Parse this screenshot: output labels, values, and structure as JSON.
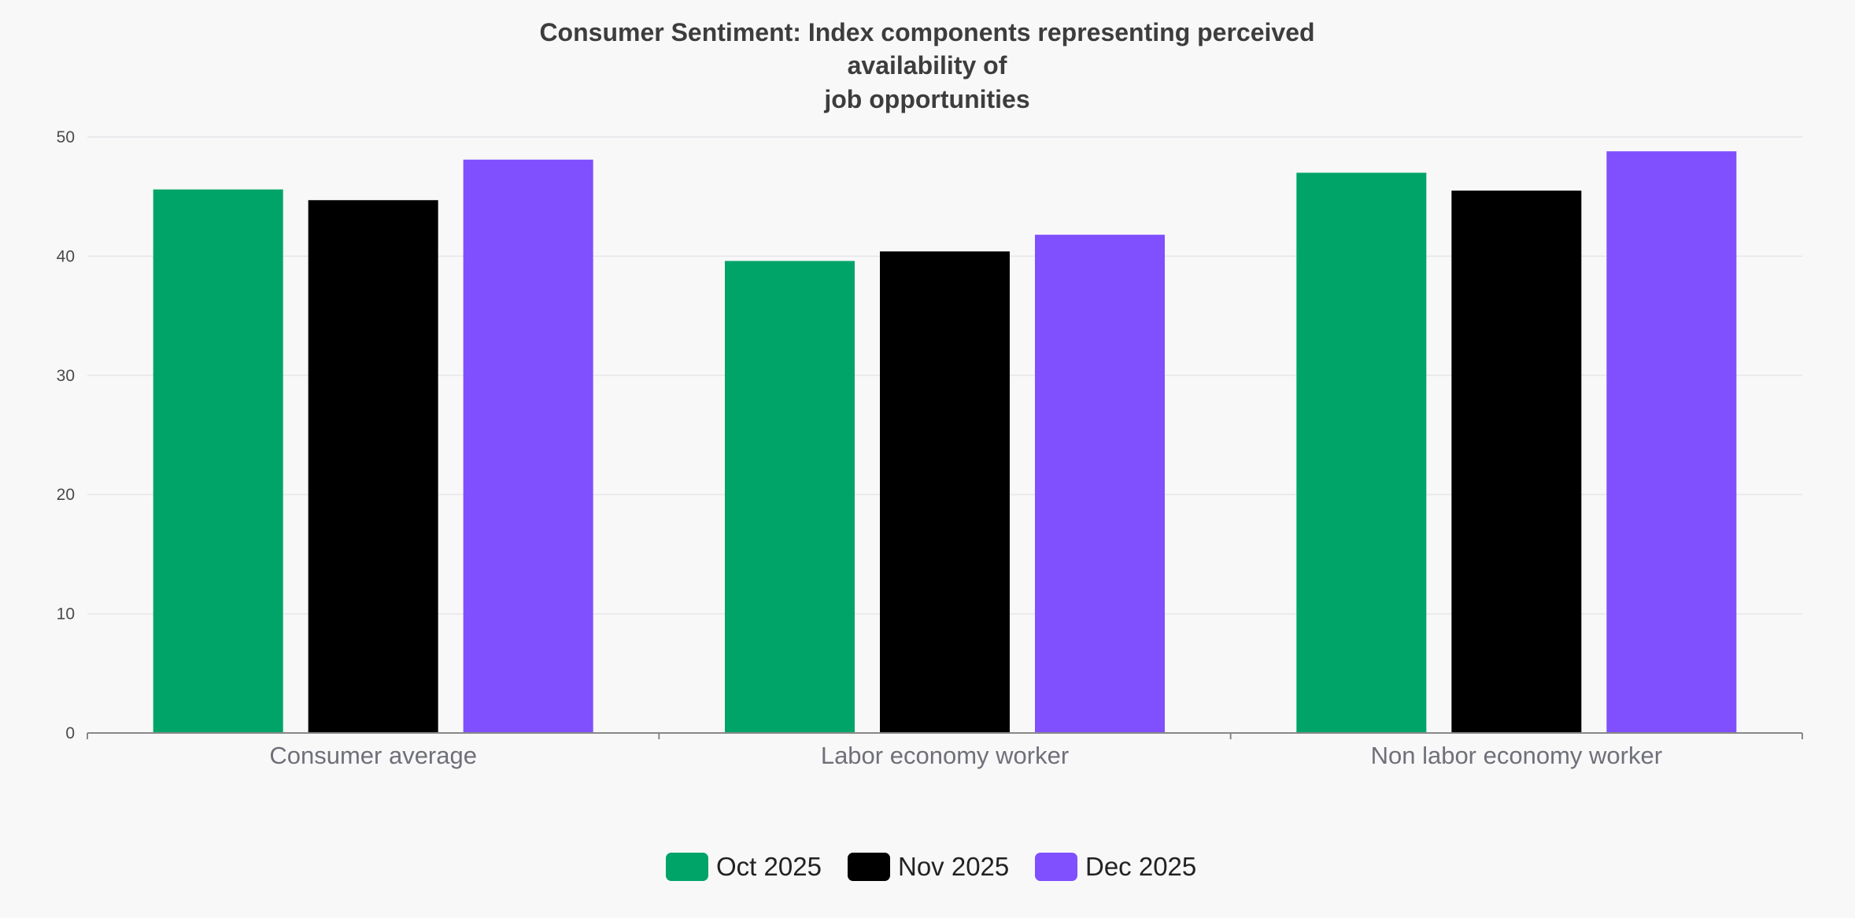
{
  "chart_data": {
    "type": "bar",
    "title_lines": [
      "Consumer Sentiment: Index components representing perceived",
      "availability of",
      "job opportunities"
    ],
    "categories": [
      "Consumer average",
      "Labor economy worker",
      "Non labor economy worker"
    ],
    "series": [
      {
        "name": "Oct 2025",
        "color": "#00a468",
        "values": [
          45.6,
          39.6,
          47.0
        ]
      },
      {
        "name": "Nov 2025",
        "color": "#000000",
        "values": [
          44.7,
          40.4,
          45.5
        ]
      },
      {
        "name": "Dec 2025",
        "color": "#8050ff",
        "values": [
          48.1,
          41.8,
          48.8
        ]
      }
    ],
    "ylim": [
      0,
      50
    ],
    "yticks": [
      0,
      10,
      20,
      30,
      40,
      50
    ],
    "grid": true,
    "legend_position": "bottom-center",
    "colors": {
      "background": "#f8f8f8",
      "gridline": "#e6e6ec",
      "axis": "#888888",
      "title": "#3d3d3d"
    }
  }
}
